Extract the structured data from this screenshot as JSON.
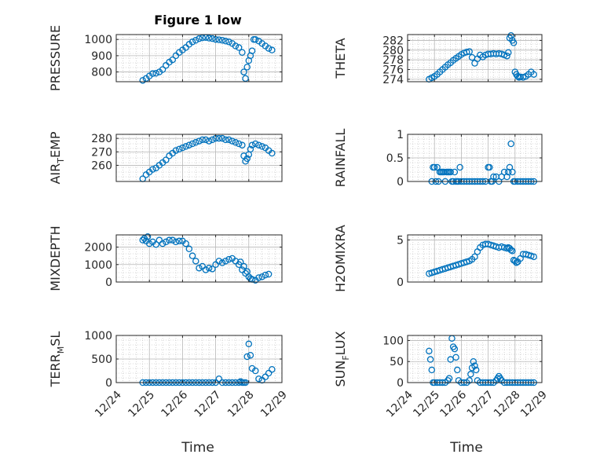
{
  "figure": {
    "title": "Figure 1 low",
    "xlabel": "Time",
    "xticks": [
      "12/24",
      "12/25",
      "12/26",
      "12/27",
      "12/28",
      "12/29"
    ],
    "colors": {
      "marker": "#0072BD",
      "axis": "#262626",
      "grid": "#b8b8b8"
    }
  },
  "chart_data": [
    {
      "type": "scatter",
      "panel": "pressure",
      "ylabel": "PRESSURE",
      "ylim": [
        740,
        1030
      ],
      "yticks": [
        800,
        900,
        1000
      ],
      "x": [
        0.8,
        0.9,
        1.0,
        1.1,
        1.2,
        1.3,
        1.4,
        1.5,
        1.6,
        1.7,
        1.8,
        1.9,
        2.0,
        2.1,
        2.2,
        2.3,
        2.4,
        2.5,
        2.6,
        2.7,
        2.8,
        2.9,
        3.0,
        3.1,
        3.2,
        3.3,
        3.4,
        3.5,
        3.6,
        3.7,
        3.8,
        3.85,
        3.9,
        3.95,
        4.0,
        4.05,
        4.1,
        4.15,
        4.2,
        4.3,
        4.4,
        4.5,
        4.6,
        4.7
      ],
      "y": [
        748,
        760,
        775,
        790,
        792,
        800,
        815,
        840,
        860,
        875,
        900,
        920,
        935,
        950,
        970,
        985,
        995,
        1005,
        1010,
        1012,
        1008,
        1005,
        1000,
        998,
        995,
        990,
        985,
        975,
        960,
        950,
        920,
        800,
        760,
        830,
        870,
        900,
        930,
        1000,
        1000,
        990,
        975,
        960,
        945,
        935
      ]
    },
    {
      "type": "scatter",
      "panel": "theta",
      "ylabel": "THETA",
      "ylim": [
        273.5,
        283.2
      ],
      "yticks": [
        274,
        276,
        278,
        280,
        282
      ],
      "x": [
        0.8,
        0.9,
        1.0,
        1.1,
        1.2,
        1.3,
        1.4,
        1.5,
        1.6,
        1.7,
        1.8,
        1.9,
        2.0,
        2.1,
        2.2,
        2.3,
        2.4,
        2.5,
        2.6,
        2.7,
        2.8,
        2.9,
        3.0,
        3.1,
        3.2,
        3.3,
        3.4,
        3.5,
        3.6,
        3.7,
        3.75,
        3.8,
        3.85,
        3.9,
        3.95,
        4.0,
        4.05,
        4.1,
        4.15,
        4.2,
        4.3,
        4.4,
        4.5,
        4.6,
        4.7
      ],
      "y": [
        274,
        274.3,
        274.6,
        275,
        275.5,
        276,
        276.5,
        277,
        277.4,
        277.9,
        278.3,
        278.7,
        279.1,
        279.4,
        279.6,
        279.7,
        278.5,
        277.3,
        278.2,
        279.0,
        278.6,
        279.0,
        279.2,
        279.2,
        279.3,
        279.2,
        279.3,
        279.2,
        279.0,
        278.8,
        279.5,
        282.5,
        283.0,
        282.0,
        281.5,
        275.5,
        275.0,
        274.6,
        274.4,
        274.5,
        274.4,
        274.6,
        275.0,
        275.5,
        275.0
      ]
    },
    {
      "type": "scatter",
      "panel": "air_temp",
      "ylabel": "AIR_TEMP",
      "ylim": [
        248,
        283
      ],
      "yticks": [
        260,
        270,
        280
      ],
      "x": [
        0.8,
        0.9,
        1.0,
        1.1,
        1.2,
        1.3,
        1.4,
        1.5,
        1.6,
        1.7,
        1.8,
        1.9,
        2.0,
        2.1,
        2.2,
        2.3,
        2.4,
        2.5,
        2.6,
        2.7,
        2.8,
        2.9,
        3.0,
        3.1,
        3.2,
        3.3,
        3.4,
        3.5,
        3.6,
        3.7,
        3.8,
        3.85,
        3.9,
        3.95,
        4.0,
        4.05,
        4.1,
        4.2,
        4.3,
        4.4,
        4.5,
        4.6,
        4.7
      ],
      "y": [
        250,
        253,
        255,
        257,
        258,
        260,
        262,
        264,
        267,
        269,
        271,
        272,
        273,
        274,
        275,
        276,
        277,
        278,
        279,
        279,
        278,
        279,
        280,
        280,
        280,
        279,
        279,
        278,
        277,
        276,
        275,
        267,
        263,
        265,
        268,
        272,
        275,
        276,
        275,
        274,
        273,
        271,
        269
      ]
    },
    {
      "type": "scatter",
      "panel": "rainfall",
      "ylabel": "RAINFALL",
      "ylim": [
        0,
        1
      ],
      "yticks": [
        0,
        0.5,
        1
      ],
      "x": [
        0.9,
        0.95,
        1.0,
        1.05,
        1.1,
        1.15,
        1.2,
        1.25,
        1.3,
        1.35,
        1.4,
        1.45,
        1.5,
        1.55,
        1.6,
        1.65,
        1.7,
        1.75,
        1.8,
        1.85,
        1.9,
        1.95,
        2.0,
        2.1,
        2.2,
        2.3,
        2.4,
        2.5,
        2.6,
        2.7,
        2.8,
        2.9,
        3.0,
        3.05,
        3.1,
        3.15,
        3.2,
        3.3,
        3.4,
        3.5,
        3.6,
        3.7,
        3.75,
        3.8,
        3.85,
        3.9,
        3.95,
        4.0,
        4.1,
        4.2,
        4.3,
        4.4,
        4.5,
        4.6,
        4.7
      ],
      "y": [
        0,
        0.3,
        0.3,
        0,
        0.3,
        0,
        0.2,
        0.2,
        0.2,
        0.2,
        0,
        0.2,
        0.2,
        0.2,
        0.2,
        0,
        0,
        0.2,
        0,
        0,
        0,
        0.3,
        0,
        0,
        0,
        0,
        0,
        0,
        0,
        0,
        0,
        0,
        0.3,
        0.3,
        0,
        0,
        0.1,
        0.1,
        0,
        0.1,
        0.2,
        0.1,
        0.2,
        0.3,
        0.8,
        0.2,
        0,
        0,
        0,
        0,
        0,
        0,
        0,
        0,
        0
      ]
    },
    {
      "type": "scatter",
      "panel": "mixdepth",
      "ylabel": "MIXDEPTH",
      "ylim": [
        0,
        2700
      ],
      "yticks": [
        0,
        1000,
        2000
      ],
      "x": [
        0.8,
        0.85,
        0.9,
        0.95,
        1.0,
        1.1,
        1.2,
        1.3,
        1.4,
        1.5,
        1.6,
        1.7,
        1.8,
        1.9,
        2.0,
        2.1,
        2.2,
        2.3,
        2.4,
        2.5,
        2.6,
        2.7,
        2.8,
        2.9,
        3.0,
        3.1,
        3.2,
        3.3,
        3.4,
        3.5,
        3.6,
        3.7,
        3.75,
        3.8,
        3.85,
        3.9,
        3.95,
        4.0,
        4.05,
        4.1,
        4.2,
        4.3,
        4.4,
        4.5,
        4.6
      ],
      "y": [
        2400,
        2500,
        2350,
        2600,
        2200,
        2300,
        2150,
        2400,
        2200,
        2300,
        2400,
        2400,
        2300,
        2350,
        2350,
        2200,
        1900,
        1500,
        1200,
        800,
        900,
        700,
        800,
        750,
        1000,
        1200,
        1100,
        1200,
        1300,
        1350,
        1200,
        1000,
        1150,
        700,
        900,
        500,
        600,
        300,
        200,
        150,
        100,
        250,
        300,
        400,
        450
      ]
    },
    {
      "type": "scatter",
      "panel": "h2omixra",
      "ylabel": "H2OMIXRA",
      "ylim": [
        0,
        5.6
      ],
      "yticks": [
        0,
        5
      ],
      "x": [
        0.8,
        0.9,
        1.0,
        1.1,
        1.2,
        1.3,
        1.4,
        1.5,
        1.6,
        1.7,
        1.8,
        1.9,
        2.0,
        2.1,
        2.2,
        2.3,
        2.4,
        2.5,
        2.6,
        2.7,
        2.8,
        2.9,
        3.0,
        3.1,
        3.2,
        3.3,
        3.4,
        3.5,
        3.6,
        3.7,
        3.75,
        3.8,
        3.85,
        3.9,
        3.95,
        4.0,
        4.05,
        4.1,
        4.2,
        4.3,
        4.4,
        4.5,
        4.6,
        4.7
      ],
      "y": [
        1.0,
        1.1,
        1.2,
        1.3,
        1.4,
        1.5,
        1.6,
        1.7,
        1.8,
        1.9,
        2.0,
        2.1,
        2.2,
        2.3,
        2.4,
        2.5,
        2.7,
        3.0,
        3.6,
        4.1,
        4.4,
        4.5,
        4.5,
        4.4,
        4.3,
        4.2,
        4.1,
        4.2,
        4.1,
        4.0,
        4.1,
        4.0,
        3.8,
        3.7,
        2.6,
        2.5,
        2.3,
        2.4,
        2.8,
        3.3,
        3.3,
        3.2,
        3.1,
        3.0
      ]
    },
    {
      "type": "scatter",
      "panel": "terr_msl",
      "ylabel": "TERR_MSL",
      "ylim": [
        0,
        1000
      ],
      "yticks": [
        0,
        500,
        1000
      ],
      "x": [
        0.8,
        0.9,
        1.0,
        1.1,
        1.2,
        1.3,
        1.4,
        1.5,
        1.6,
        1.7,
        1.8,
        1.9,
        2.0,
        2.1,
        2.2,
        2.3,
        2.4,
        2.5,
        2.6,
        2.7,
        2.8,
        2.9,
        3.0,
        3.1,
        3.2,
        3.3,
        3.4,
        3.5,
        3.6,
        3.7,
        3.75,
        3.8,
        3.85,
        3.9,
        3.95,
        4.0,
        4.05,
        4.1,
        4.2,
        4.3,
        4.4,
        4.5,
        4.6,
        4.7
      ],
      "y": [
        0,
        0,
        0,
        0,
        0,
        0,
        0,
        0,
        0,
        0,
        0,
        0,
        0,
        0,
        0,
        0,
        0,
        0,
        0,
        0,
        0,
        0,
        0,
        80,
        0,
        0,
        0,
        0,
        0,
        0,
        20,
        0,
        0,
        0,
        550,
        820,
        580,
        300,
        250,
        80,
        50,
        120,
        200,
        280
      ]
    },
    {
      "type": "scatter",
      "panel": "sun_flux",
      "ylabel": "SUN_FLUX",
      "ylim": [
        0,
        112
      ],
      "yticks": [
        0,
        50,
        100
      ],
      "x": [
        0.8,
        0.85,
        0.9,
        0.95,
        1.0,
        1.1,
        1.2,
        1.3,
        1.4,
        1.5,
        1.55,
        1.6,
        1.65,
        1.7,
        1.75,
        1.8,
        1.85,
        1.9,
        2.0,
        2.1,
        2.2,
        2.3,
        2.35,
        2.4,
        2.45,
        2.5,
        2.55,
        2.6,
        2.7,
        2.8,
        2.9,
        3.0,
        3.1,
        3.2,
        3.3,
        3.35,
        3.4,
        3.45,
        3.5,
        3.6,
        3.7,
        3.8,
        3.9,
        4.0,
        4.1,
        4.2,
        4.3,
        4.4,
        4.5,
        4.6,
        4.7
      ],
      "y": [
        75,
        55,
        30,
        0,
        0,
        0,
        0,
        0,
        0,
        5,
        10,
        55,
        105,
        85,
        80,
        60,
        30,
        5,
        0,
        0,
        0,
        5,
        20,
        35,
        50,
        40,
        30,
        5,
        0,
        0,
        0,
        0,
        0,
        0,
        5,
        10,
        15,
        10,
        5,
        0,
        0,
        0,
        0,
        0,
        0,
        0,
        0,
        0,
        0,
        0,
        0
      ]
    }
  ]
}
